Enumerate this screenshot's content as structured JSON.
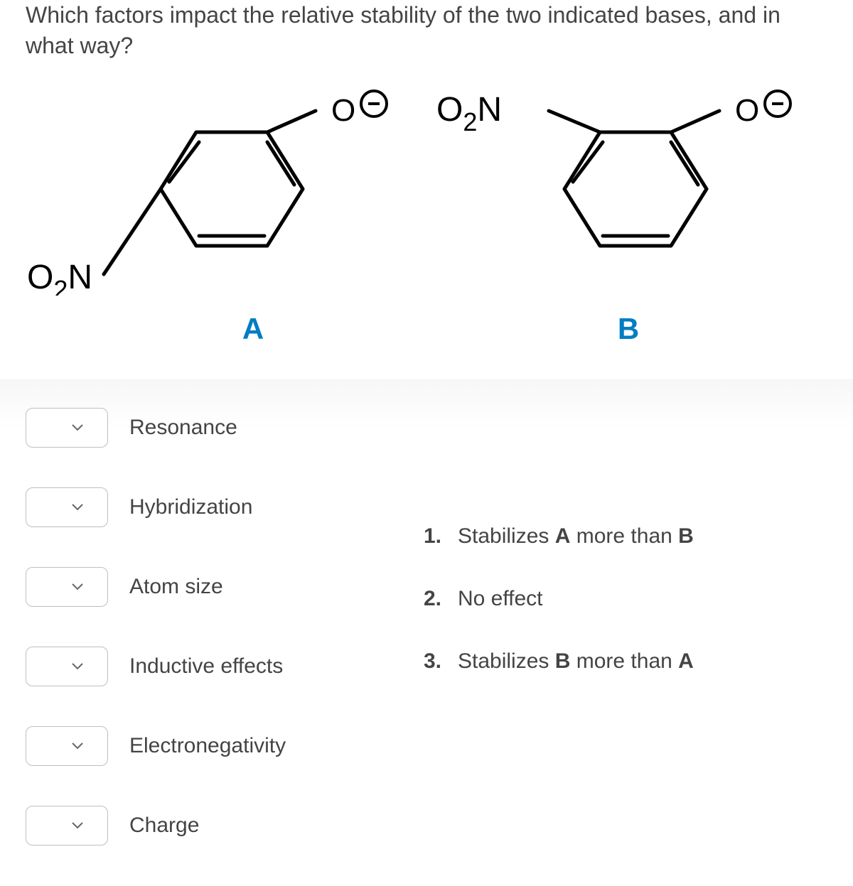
{
  "question": "Which factors impact the relative stability of the two indicated bases, and in what way?",
  "molecules": {
    "a_label": "A",
    "b_label": "B",
    "nitro": "O",
    "nitro2": "N",
    "oxygen": "O",
    "label_color": "#007dc3"
  },
  "factors": [
    {
      "label": "Resonance"
    },
    {
      "label": "Hybridization"
    },
    {
      "label": "Atom size"
    },
    {
      "label": "Inductive effects"
    },
    {
      "label": "Electronegativity"
    },
    {
      "label": "Charge"
    }
  ],
  "options": [
    {
      "num": "1.",
      "text": "Stabilizes <b>A</b> more than <b>B</b>"
    },
    {
      "num": "2.",
      "text": "No effect"
    },
    {
      "num": "3.",
      "text": "Stabilizes <b>B</b> more than <b>A</b>"
    }
  ],
  "colors": {
    "label": "#007dc3",
    "text": "#444444",
    "border": "#bfbfbf",
    "bg": "#ffffff"
  }
}
